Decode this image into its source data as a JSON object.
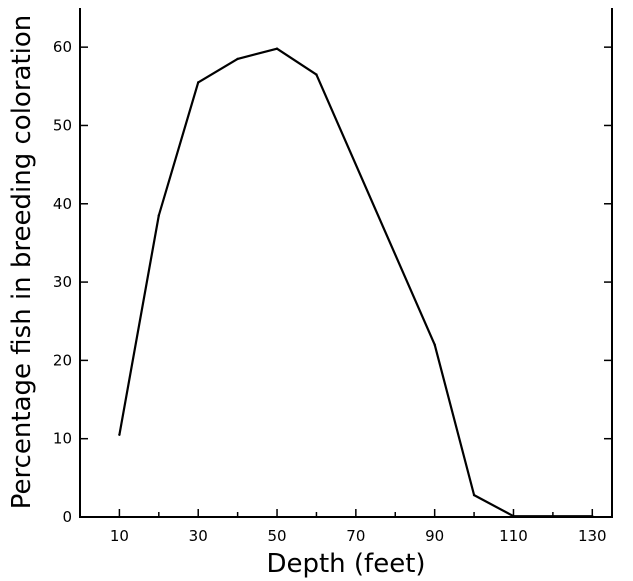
{
  "chart_data": {
    "type": "line",
    "title": "",
    "xlabel": "Depth  (feet)",
    "ylabel": "Percentage fish in breeding coloration",
    "xlim": [
      0,
      135
    ],
    "ylim": [
      0,
      65
    ],
    "x_ticks": [
      10,
      30,
      50,
      70,
      90,
      110,
      130
    ],
    "x_minor_ticks": [
      20,
      40,
      60,
      80,
      100,
      120
    ],
    "y_ticks": [
      0,
      10,
      20,
      30,
      40,
      50,
      60
    ],
    "grid": false,
    "series": [
      {
        "x": [
          10,
          20,
          30,
          40,
          50,
          60,
          90,
          100,
          110,
          130
        ],
        "y": [
          10.5,
          38.5,
          55.5,
          58.5,
          59.8,
          56.5,
          22,
          2.8,
          0.1,
          0.1
        ]
      }
    ]
  }
}
